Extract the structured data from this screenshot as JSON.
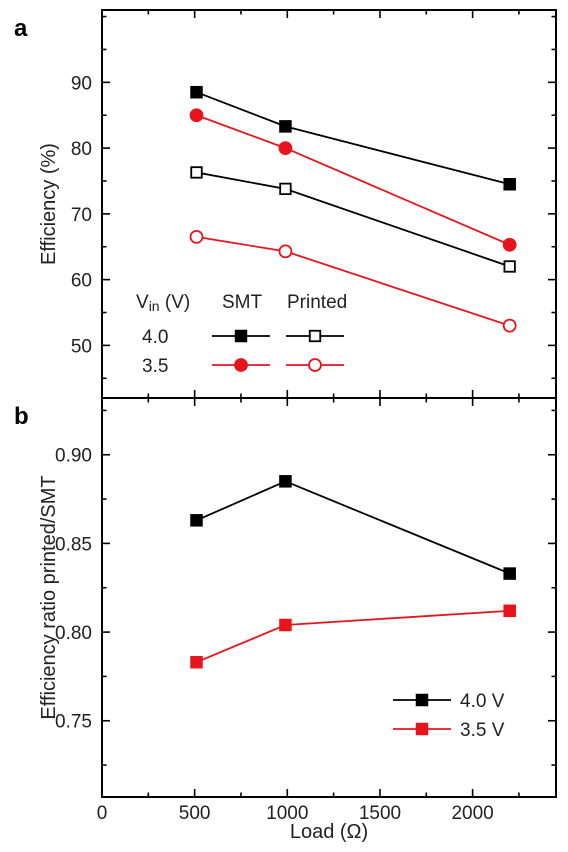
{
  "chart_data": [
    {
      "panel": "a",
      "type": "line",
      "xlabel": "Load (Ω)",
      "ylabel": "Efficiency (%)",
      "xlim": [
        0,
        2450
      ],
      "ylim": [
        42,
        101
      ],
      "xticks": [
        0,
        500,
        1000,
        1500,
        2000
      ],
      "yticks": [
        50,
        60,
        70,
        80,
        90
      ],
      "x": [
        510,
        990,
        2200
      ],
      "series": [
        {
          "name": "SMT 4.0",
          "color": "#000000",
          "marker": "square",
          "filled": true,
          "values": [
            88.5,
            83.3,
            74.5
          ]
        },
        {
          "name": "SMT 3.5",
          "color": "#e8141c",
          "marker": "circle",
          "filled": true,
          "values": [
            85.0,
            80.0,
            65.3
          ]
        },
        {
          "name": "Printed 4.0",
          "color": "#000000",
          "marker": "square",
          "filled": false,
          "values": [
            76.3,
            73.8,
            62.0
          ]
        },
        {
          "name": "Printed 3.5",
          "color": "#e8141c",
          "marker": "circle",
          "filled": false,
          "values": [
            66.5,
            64.3,
            53.0
          ]
        }
      ],
      "legend": {
        "header_vin": "V",
        "header_vin_sub": "in",
        "header_vin_unit": " (V)",
        "header_smt": "SMT",
        "header_printed": "Printed",
        "rows": [
          {
            "label": "4.0",
            "color": "#000000",
            "marker": "square"
          },
          {
            "label": "3.5",
            "color": "#e8141c",
            "marker": "circle"
          }
        ]
      },
      "grid": false
    },
    {
      "panel": "b",
      "type": "line",
      "xlabel": "Load (Ω)",
      "ylabel": "Efficiency ratio printed/SMT",
      "xlim": [
        0,
        2450
      ],
      "ylim": [
        0.707,
        0.932
      ],
      "xticks": [
        0,
        500,
        1000,
        1500,
        2000
      ],
      "yticks": [
        0.75,
        0.8,
        0.85,
        0.9
      ],
      "ytick_labels": [
        "0.75",
        "0.80",
        "0.85",
        "0.90"
      ],
      "x": [
        510,
        990,
        2200
      ],
      "series": [
        {
          "name": "4.0 V",
          "color": "#000000",
          "marker": "square",
          "values": [
            0.863,
            0.885,
            0.833
          ]
        },
        {
          "name": "3.5 V",
          "color": "#e8141c",
          "marker": "square",
          "values": [
            0.783,
            0.804,
            0.812
          ]
        }
      ],
      "legend_position": "bottom-right",
      "grid": false
    }
  ]
}
